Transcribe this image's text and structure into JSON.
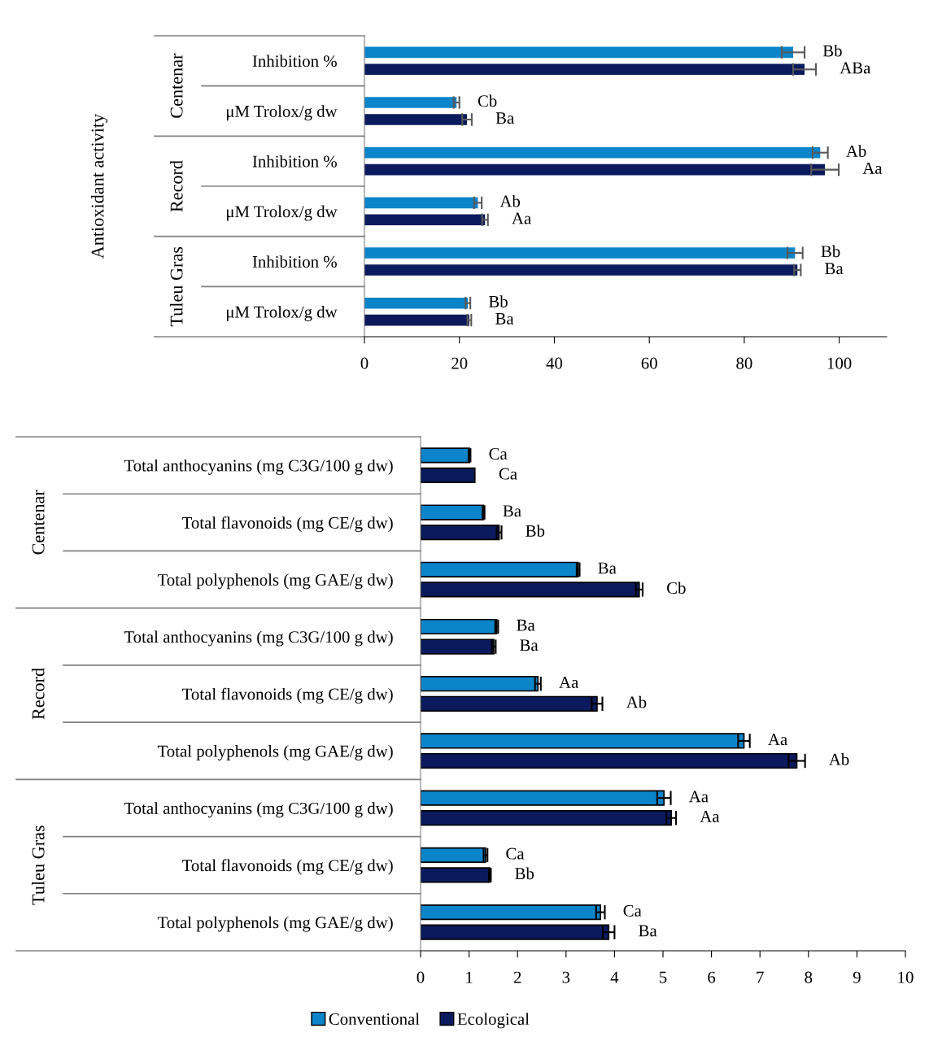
{
  "chart_data": [
    {
      "type": "bar",
      "orientation": "horizontal",
      "ylabel": "Antioxidant activity",
      "categories": [
        "Inhibition %",
        "μM Trolox/g dw",
        "Inhibition %",
        "μM Trolox/g dw",
        "Inhibition %",
        "μM Trolox/g dw"
      ],
      "annotations": [
        "Centenar",
        "Record",
        "Tuleu Gras"
      ],
      "series": [
        {
          "color": "#0b84c9",
          "values": [
            90.3,
            19.4,
            96.0,
            23.9,
            90.7,
            21.8
          ],
          "errors": [
            2.4,
            0.6,
            1.6,
            0.8,
            1.6,
            0.5
          ],
          "value_labels": [
            "Bb",
            "Cb",
            "Ab",
            "Ab",
            "Bb",
            "Bb"
          ]
        },
        {
          "color": "#0b1a5c",
          "values": [
            92.7,
            21.6,
            97.0,
            25.4,
            91.2,
            22.1
          ],
          "errors": [
            2.4,
            1.0,
            2.9,
            0.6,
            0.7,
            0.4
          ],
          "value_labels": [
            "ABa",
            "Ba",
            "Aa",
            "Aa",
            "Ba",
            "Ba"
          ]
        }
      ],
      "xlim": [
        0,
        110
      ],
      "xticks": [
        0,
        20,
        40,
        60,
        80,
        100
      ],
      "grid": false,
      "legend": false
    },
    {
      "type": "bar",
      "orientation": "horizontal",
      "categories": [
        "Total anthocyanins (mg C3G/100 g dw)",
        "Total flavonoids (mg CE/g dw)",
        "Total polyphenols (mg GAE/g dw)",
        "Total anthocyanins (mg C3G/100 g dw)",
        "Total flavonoids (mg CE/g dw)",
        "Total polyphenols (mg GAE/g dw)",
        "Total anthocyanins (mg C3G/100 g dw)",
        "Total flavonoids (mg CE/g dw)",
        "Total polyphenols (mg GAE/g dw)"
      ],
      "annotations": [
        "Centenar",
        "Record",
        "Tuleu Gras"
      ],
      "series": [
        {
          "name": "Conventional",
          "color": "#0b84c9",
          "values": [
            1.01,
            1.3,
            3.25,
            1.57,
            2.42,
            6.67,
            5.02,
            1.34,
            3.71
          ],
          "errors": [
            0.02,
            0.02,
            0.03,
            0.03,
            0.06,
            0.12,
            0.14,
            0.04,
            0.09
          ],
          "value_labels": [
            "Ca",
            "Ba",
            "Ba",
            "Ba",
            "Aa",
            "Aa",
            "Aa",
            "Ca",
            "Ca"
          ]
        },
        {
          "name": "Ecological",
          "color": "#0b1a5c",
          "values": [
            1.12,
            1.62,
            4.51,
            1.51,
            3.64,
            7.76,
            5.17,
            1.43,
            3.88
          ],
          "errors": [
            null,
            0.05,
            0.07,
            0.04,
            0.11,
            0.17,
            0.1,
            0.02,
            0.12
          ],
          "value_labels": [
            "Ca",
            "Bb",
            "Cb",
            "Ba",
            "Ab",
            "Ab",
            "Aa",
            "Bb",
            "Ba"
          ]
        }
      ],
      "xlim": [
        0,
        10
      ],
      "xticks": [
        0,
        1,
        2,
        3,
        4,
        5,
        6,
        7,
        8,
        9,
        10
      ],
      "grid": false,
      "legend": "bottom"
    }
  ]
}
